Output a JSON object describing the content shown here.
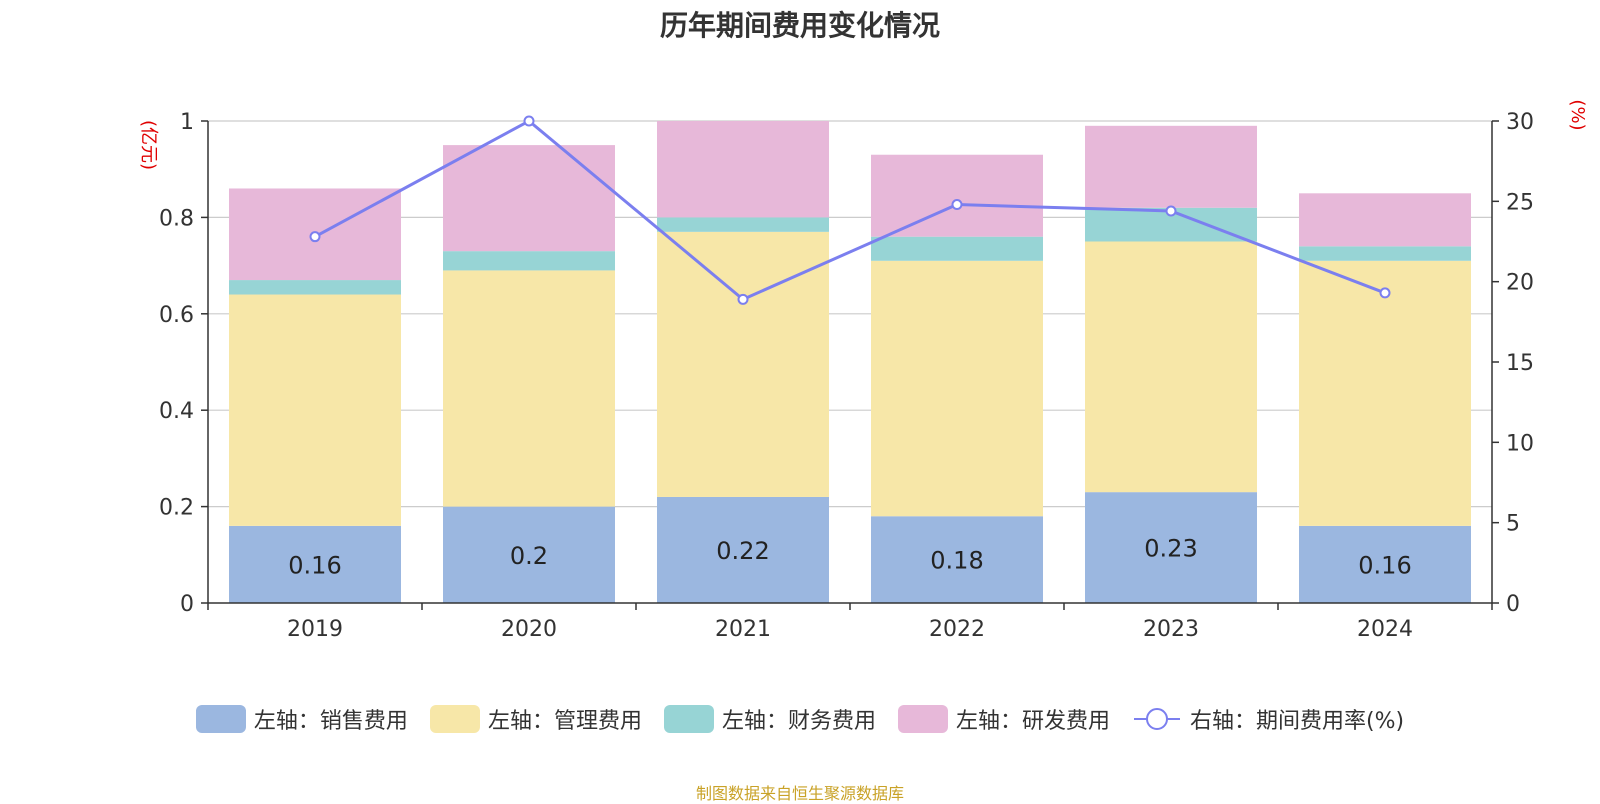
{
  "chart_data": {
    "type": "bar",
    "title": "历年期间费用变化情况",
    "categories": [
      "2019",
      "2020",
      "2021",
      "2022",
      "2023",
      "2024"
    ],
    "left_axis": {
      "unit": "(亿元)",
      "ylim": [
        0,
        1
      ],
      "ticks": [
        "0",
        "0.2",
        "0.4",
        "0.6",
        "0.8",
        "1"
      ]
    },
    "right_axis": {
      "unit": "(%)",
      "ylim": [
        0,
        30
      ],
      "ticks": [
        "0",
        "5",
        "10",
        "15",
        "20",
        "25",
        "30"
      ]
    },
    "series": [
      {
        "name": "左轴：销售费用",
        "type": "bar",
        "color": "#9bb7e0",
        "values": [
          0.16,
          0.2,
          0.22,
          0.18,
          0.23,
          0.16
        ],
        "labels": [
          "0.16",
          "0.2",
          "0.22",
          "0.18",
          "0.23",
          "0.16"
        ]
      },
      {
        "name": "左轴：管理费用",
        "type": "bar",
        "color": "#f7e7a8",
        "values": [
          0.48,
          0.49,
          0.55,
          0.53,
          0.52,
          0.55
        ]
      },
      {
        "name": "左轴：财务费用",
        "type": "bar",
        "color": "#97d4d5",
        "values": [
          0.03,
          0.04,
          0.03,
          0.05,
          0.07,
          0.03
        ]
      },
      {
        "name": "左轴：研发费用",
        "type": "bar",
        "color": "#e7b8d9",
        "values": [
          0.19,
          0.22,
          0.2,
          0.17,
          0.17,
          0.11
        ]
      },
      {
        "name": "右轴：期间费用率(%)",
        "type": "line",
        "color": "#7b7fef",
        "values": [
          22.8,
          30.0,
          18.9,
          24.8,
          24.4,
          19.3
        ]
      }
    ],
    "grid": true,
    "legend_position": "bottom"
  },
  "source_note": "制图数据来自恒生聚源数据库"
}
